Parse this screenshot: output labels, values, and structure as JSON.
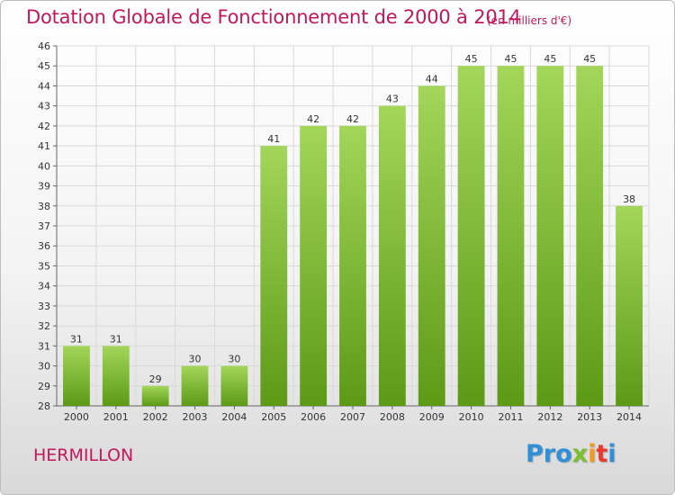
{
  "header": {
    "title": "Dotation Globale de Fonctionnement de 2000 à 2014",
    "unit": "(en milliers d'€)"
  },
  "footer": {
    "commune": "HERMILLON",
    "logo": [
      "Pro",
      "x",
      "i",
      "t",
      "i"
    ]
  },
  "colors": {
    "title": "#c2185b",
    "bar_top": "#a3d65a",
    "bar_bottom": "#5c9a16",
    "grid": "#d9d9d9"
  },
  "chart_data": {
    "type": "bar",
    "title": "Dotation Globale de Fonctionnement de 2000 à 2014",
    "subtitle": "(en milliers d'€)",
    "xlabel": "",
    "ylabel": "",
    "categories": [
      "2000",
      "2001",
      "2002",
      "2003",
      "2004",
      "2005",
      "2006",
      "2007",
      "2008",
      "2009",
      "2010",
      "2011",
      "2012",
      "2013",
      "2014"
    ],
    "values": [
      31,
      31,
      29,
      30,
      30,
      41,
      42,
      42,
      43,
      44,
      45,
      45,
      45,
      45,
      38
    ],
    "ylim": [
      28,
      46
    ],
    "yticks": [
      28,
      29,
      30,
      31,
      32,
      33,
      34,
      35,
      36,
      37,
      38,
      39,
      40,
      41,
      42,
      43,
      44,
      45,
      46
    ],
    "grid": true,
    "legend": "none"
  }
}
